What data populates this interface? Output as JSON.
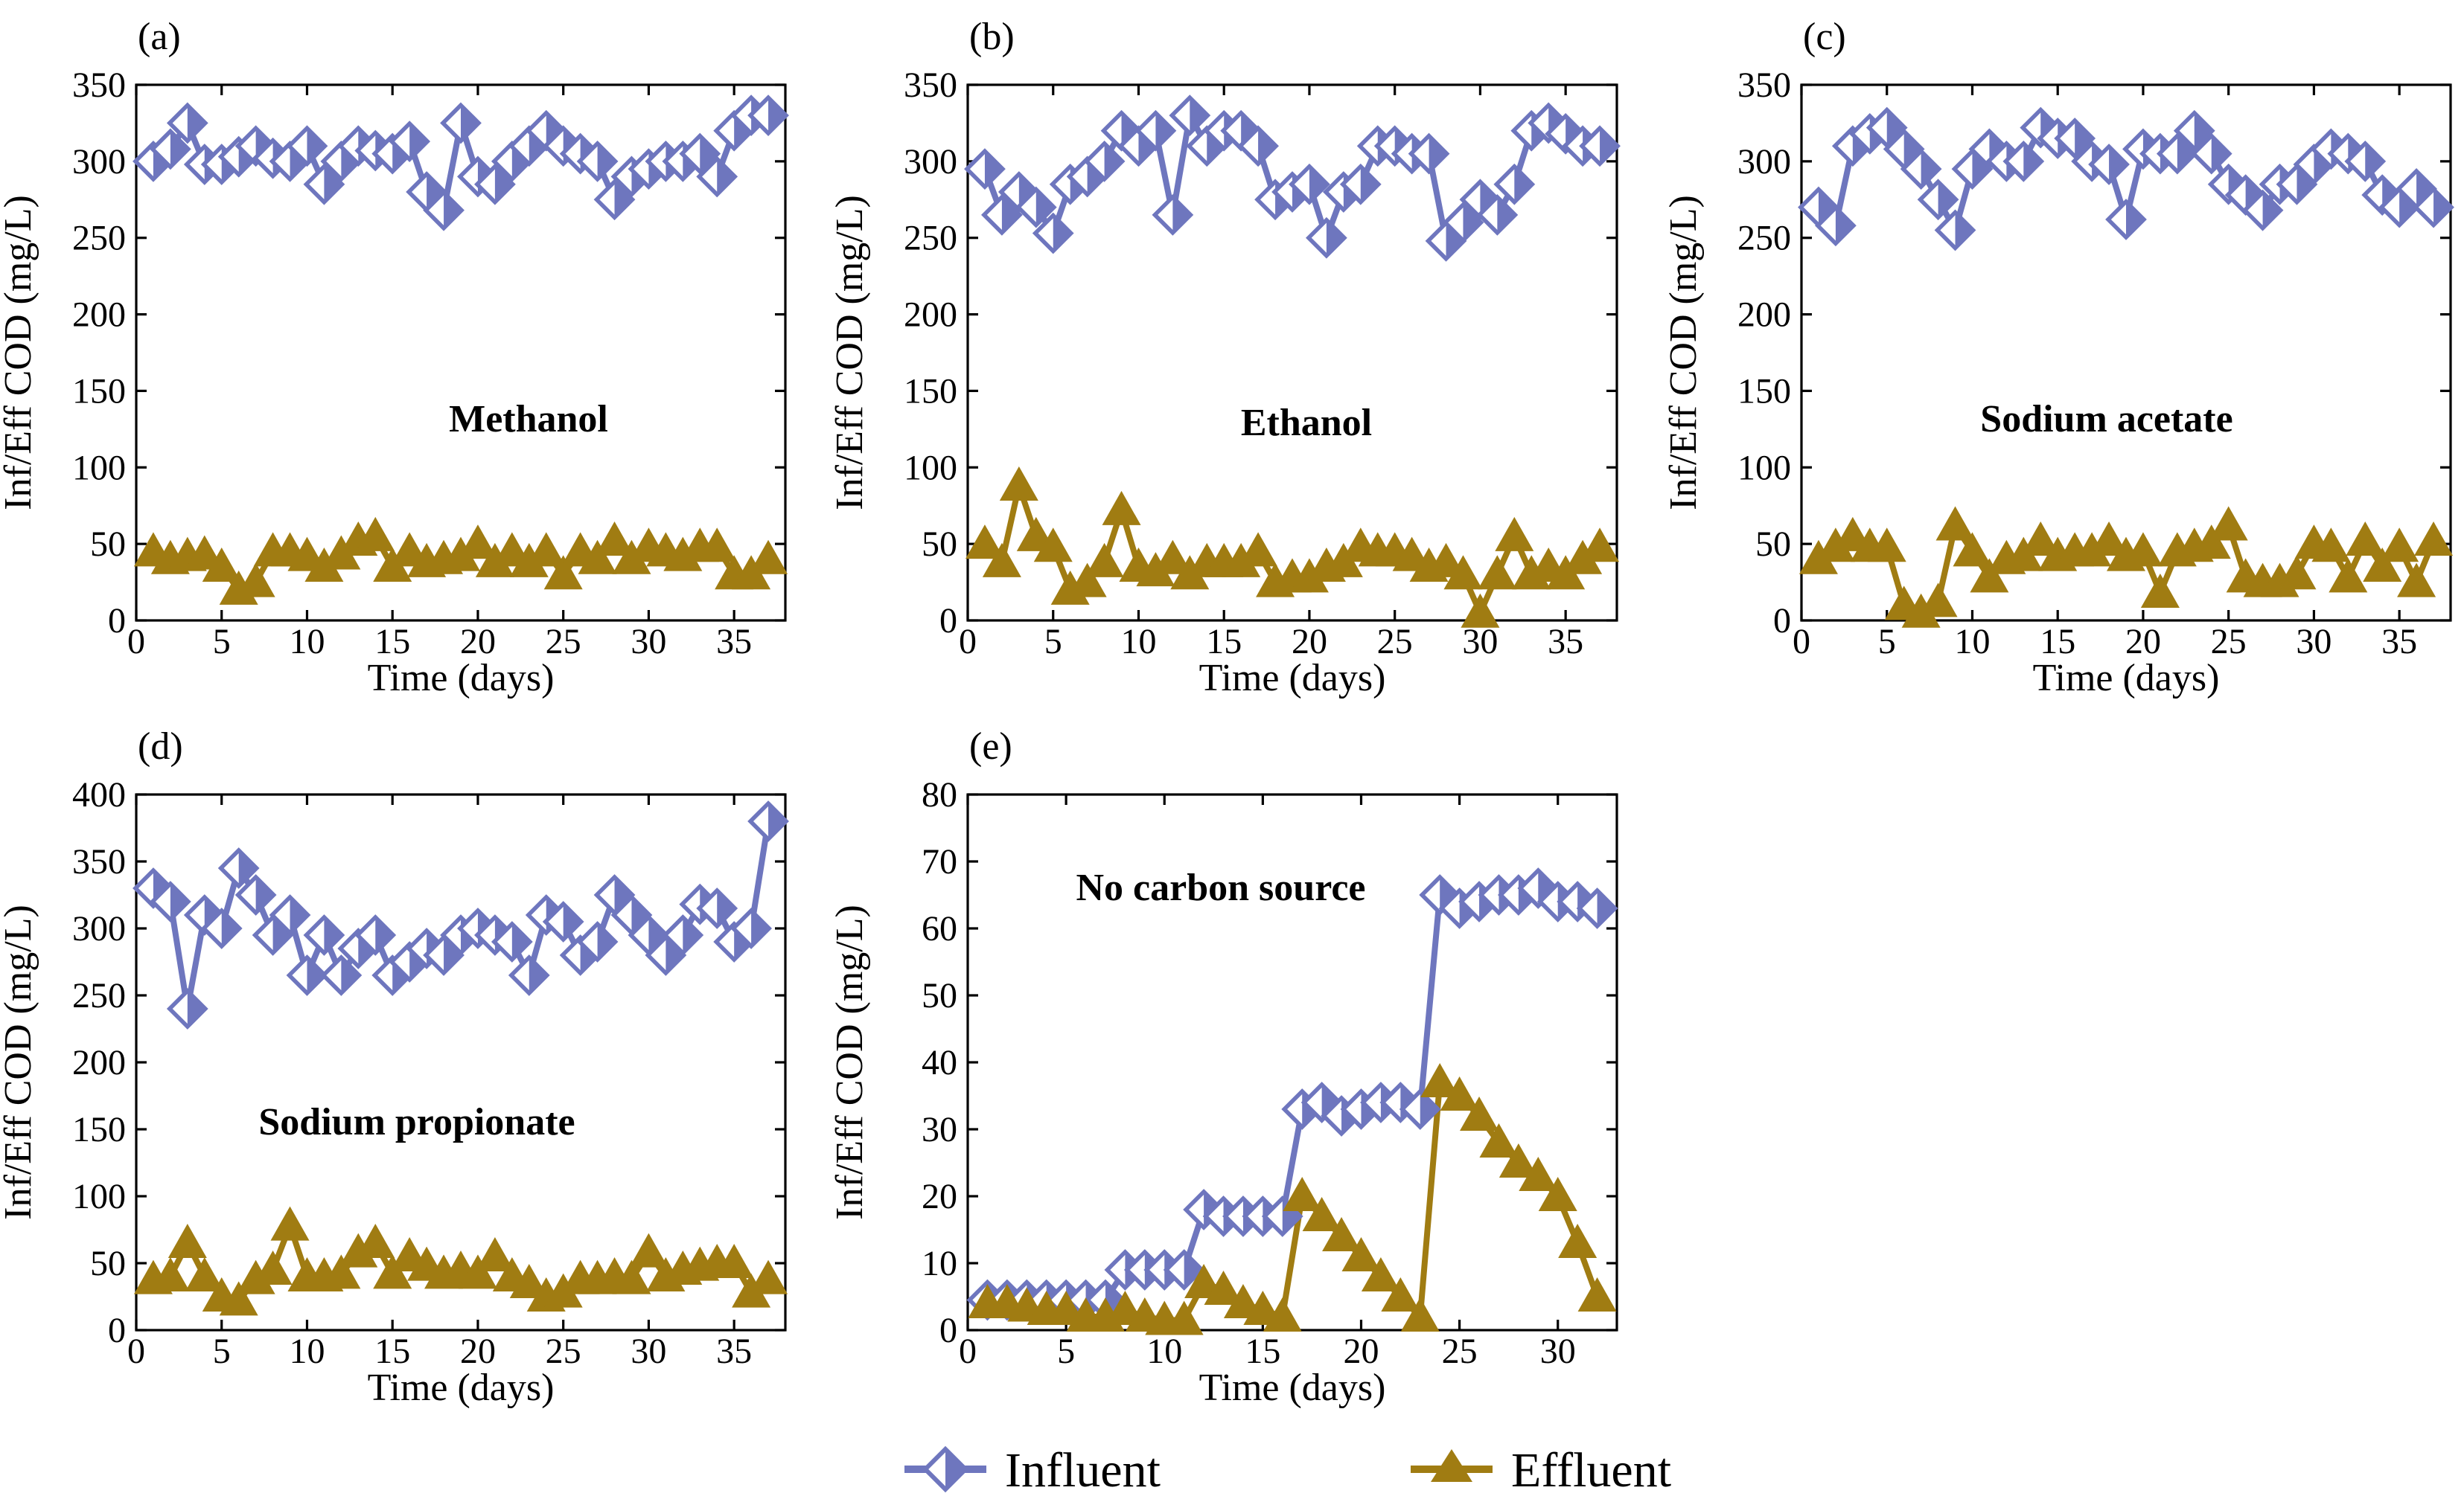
{
  "colors": {
    "influent": "#6E76BE",
    "effluent": "#A07C12"
  },
  "legend": {
    "influent_label": "Influent",
    "effluent_label": "Effluent"
  },
  "chart_data": [
    {
      "type": "line",
      "panel": "(a)",
      "annotation": "Methanol",
      "xlabel": "Time (days)",
      "ylabel": "Inf/Eff COD (mg/L)",
      "xlim": [
        0,
        38
      ],
      "ylim": [
        0,
        350
      ],
      "xticks": [
        0,
        5,
        10,
        15,
        20,
        25,
        30,
        35
      ],
      "yticks": [
        0,
        50,
        100,
        150,
        200,
        250,
        300,
        350
      ],
      "x": [
        1,
        2,
        3,
        4,
        5,
        6,
        7,
        8,
        9,
        10,
        11,
        12,
        13,
        14,
        15,
        16,
        17,
        18,
        19,
        20,
        21,
        22,
        23,
        24,
        25,
        26,
        27,
        28,
        29,
        30,
        31,
        32,
        33,
        34,
        35,
        36,
        37
      ],
      "series": [
        {
          "name": "Influent",
          "marker": "diamond",
          "values": [
            300,
            308,
            325,
            298,
            298,
            303,
            310,
            302,
            300,
            310,
            285,
            300,
            310,
            307,
            305,
            313,
            280,
            268,
            325,
            290,
            285,
            300,
            310,
            320,
            310,
            305,
            300,
            275,
            290,
            295,
            300,
            300,
            305,
            290,
            320,
            330,
            330
          ]
        },
        {
          "name": "Effluent",
          "marker": "triangle",
          "values": [
            45,
            40,
            42,
            43,
            35,
            20,
            25,
            45,
            45,
            42,
            35,
            43,
            52,
            55,
            35,
            45,
            38,
            40,
            42,
            50,
            38,
            45,
            38,
            45,
            30,
            45,
            40,
            52,
            40,
            48,
            45,
            42,
            48,
            48,
            30,
            30,
            40
          ]
        }
      ]
    },
    {
      "type": "line",
      "panel": "(b)",
      "annotation": "Ethanol",
      "xlabel": "Time (days)",
      "ylabel": "Inf/Eff COD (mg/L)",
      "xlim": [
        0,
        38
      ],
      "ylim": [
        0,
        350
      ],
      "xticks": [
        0,
        5,
        10,
        15,
        20,
        25,
        30,
        35
      ],
      "yticks": [
        0,
        50,
        100,
        150,
        200,
        250,
        300,
        350
      ],
      "x": [
        1,
        2,
        3,
        4,
        5,
        6,
        7,
        8,
        9,
        10,
        11,
        12,
        13,
        14,
        15,
        16,
        17,
        18,
        19,
        20,
        21,
        22,
        23,
        24,
        25,
        26,
        27,
        28,
        29,
        30,
        31,
        32,
        33,
        34,
        35,
        36,
        37
      ],
      "series": [
        {
          "name": "Influent",
          "marker": "diamond",
          "values": [
            295,
            265,
            280,
            270,
            253,
            285,
            290,
            300,
            320,
            310,
            320,
            265,
            330,
            310,
            320,
            320,
            310,
            275,
            280,
            285,
            250,
            280,
            285,
            310,
            310,
            305,
            305,
            248,
            260,
            275,
            265,
            285,
            320,
            325,
            318,
            310,
            310
          ]
        },
        {
          "name": "Effluent",
          "marker": "triangle",
          "values": [
            50,
            38,
            88,
            55,
            48,
            20,
            25,
            38,
            72,
            35,
            32,
            40,
            30,
            38,
            38,
            38,
            45,
            25,
            28,
            28,
            35,
            38,
            48,
            45,
            45,
            42,
            35,
            38,
            30,
            5,
            30,
            55,
            30,
            35,
            30,
            40,
            48
          ]
        }
      ]
    },
    {
      "type": "line",
      "panel": "(c)",
      "annotation": "Sodium acetate",
      "xlabel": "Time (days)",
      "ylabel": "Inf/Eff COD (mg/L)",
      "xlim": [
        0,
        38
      ],
      "ylim": [
        0,
        350
      ],
      "xticks": [
        0,
        5,
        10,
        15,
        20,
        25,
        30,
        35
      ],
      "yticks": [
        0,
        50,
        100,
        150,
        200,
        250,
        300,
        350
      ],
      "x": [
        1,
        2,
        3,
        4,
        5,
        6,
        7,
        8,
        9,
        10,
        11,
        12,
        13,
        14,
        15,
        16,
        17,
        18,
        19,
        20,
        21,
        22,
        23,
        24,
        25,
        26,
        27,
        28,
        29,
        30,
        31,
        32,
        33,
        34,
        35,
        36,
        37
      ],
      "series": [
        {
          "name": "Influent",
          "marker": "diamond",
          "values": [
            270,
            258,
            310,
            318,
            322,
            308,
            295,
            275,
            255,
            295,
            308,
            300,
            300,
            322,
            315,
            315,
            300,
            298,
            262,
            308,
            305,
            305,
            320,
            305,
            285,
            278,
            268,
            285,
            285,
            298,
            308,
            305,
            300,
            278,
            270,
            282,
            270
          ]
        },
        {
          "name": "Effluent",
          "marker": "triangle",
          "values": [
            40,
            48,
            55,
            48,
            48,
            10,
            5,
            12,
            62,
            45,
            28,
            40,
            42,
            52,
            42,
            45,
            45,
            52,
            42,
            45,
            18,
            45,
            48,
            50,
            62,
            28,
            25,
            25,
            30,
            50,
            48,
            28,
            52,
            35,
            48,
            25,
            52
          ]
        }
      ]
    },
    {
      "type": "line",
      "panel": "(d)",
      "annotation": "Sodium propionate",
      "xlabel": "Time (days)",
      "ylabel": "Inf/Eff COD (mg/L)",
      "xlim": [
        0,
        38
      ],
      "ylim": [
        0,
        400
      ],
      "xticks": [
        0,
        5,
        10,
        15,
        20,
        25,
        30,
        35
      ],
      "yticks": [
        0,
        50,
        100,
        150,
        200,
        250,
        300,
        350,
        400
      ],
      "x": [
        1,
        2,
        3,
        4,
        5,
        6,
        7,
        8,
        9,
        10,
        11,
        12,
        13,
        14,
        15,
        16,
        17,
        18,
        19,
        20,
        21,
        22,
        23,
        24,
        25,
        26,
        27,
        28,
        29,
        30,
        31,
        32,
        33,
        34,
        35,
        36,
        37
      ],
      "series": [
        {
          "name": "Influent",
          "marker": "diamond",
          "values": [
            330,
            320,
            240,
            310,
            300,
            345,
            325,
            295,
            310,
            265,
            295,
            265,
            285,
            295,
            265,
            275,
            285,
            280,
            295,
            300,
            295,
            290,
            265,
            310,
            305,
            280,
            290,
            325,
            310,
            295,
            280,
            295,
            318,
            315,
            290,
            300,
            380
          ]
        },
        {
          "name": "Effluent",
          "marker": "triangle",
          "values": [
            38,
            40,
            65,
            40,
            25,
            22,
            38,
            45,
            78,
            40,
            40,
            42,
            58,
            65,
            42,
            55,
            48,
            42,
            45,
            42,
            55,
            40,
            35,
            25,
            28,
            38,
            38,
            40,
            38,
            58,
            40,
            45,
            48,
            50,
            50,
            28,
            38
          ]
        }
      ]
    },
    {
      "type": "line",
      "panel": "(e)",
      "annotation": "No carbon source",
      "xlabel": "Time (days)",
      "ylabel": "Inf/Eff COD (mg/L)",
      "xlim": [
        0,
        33
      ],
      "ylim": [
        0,
        80
      ],
      "xticks": [
        0,
        5,
        10,
        15,
        20,
        25,
        30
      ],
      "yticks": [
        0,
        10,
        20,
        30,
        40,
        50,
        60,
        70,
        80
      ],
      "x": [
        1,
        2,
        3,
        4,
        5,
        6,
        7,
        8,
        9,
        10,
        11,
        12,
        13,
        14,
        15,
        16,
        17,
        18,
        19,
        20,
        21,
        22,
        23,
        24,
        25,
        26,
        27,
        28,
        29,
        30,
        31,
        32
      ],
      "series": [
        {
          "name": "Influent",
          "marker": "diamond",
          "values": [
            4.5,
            4.5,
            4.5,
            4.5,
            4.5,
            4.5,
            4.5,
            9,
            9,
            9,
            9,
            18,
            17,
            17,
            17,
            17,
            33,
            34,
            32,
            33,
            34,
            34,
            33,
            65,
            63,
            64,
            65,
            65,
            66,
            64,
            64,
            63
          ]
        },
        {
          "name": "Effluent",
          "marker": "triangle",
          "values": [
            4,
            4,
            3.5,
            3,
            3,
            2,
            2,
            3,
            2,
            1.5,
            1.5,
            7,
            6,
            4,
            3,
            2,
            20,
            17,
            14,
            11,
            8,
            5,
            2,
            37,
            35,
            32,
            28,
            25,
            23,
            20,
            13,
            5
          ]
        }
      ]
    }
  ]
}
